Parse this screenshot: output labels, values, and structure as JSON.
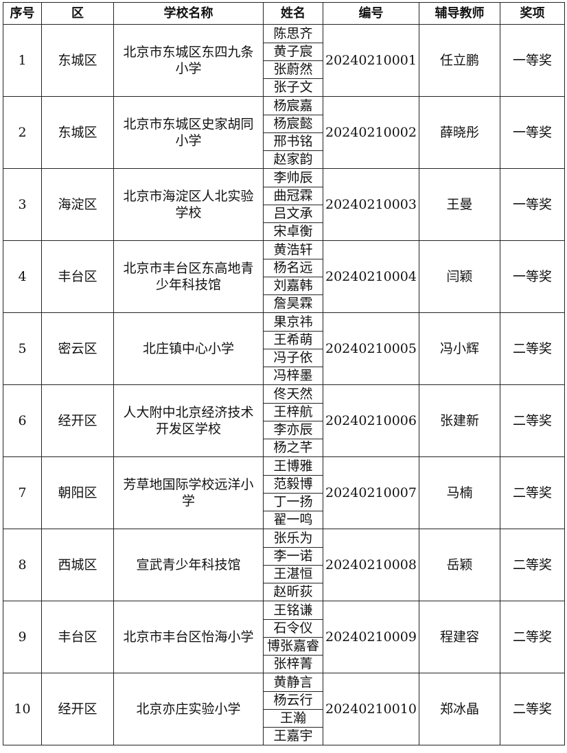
{
  "headers": [
    "序号",
    "区",
    "学校名称",
    "姓名",
    "编号",
    "辅导教师",
    "奖项"
  ],
  "rows": [
    {
      "no": "1",
      "district": "东城区",
      "school": "北京市东城区东四九条小学",
      "names": [
        "陈思齐",
        "黄子宸",
        "张蔚然",
        "张子文"
      ],
      "code": "20240210001",
      "teacher": "任立鹏",
      "award": "一等奖"
    },
    {
      "no": "2",
      "district": "东城区",
      "school": "北京市东城区史家胡同小学",
      "names": [
        "杨宸嘉",
        "杨宸懿",
        "邢书铭",
        "赵家韵"
      ],
      "code": "20240210002",
      "teacher": "薛晓彤",
      "award": "一等奖"
    },
    {
      "no": "3",
      "district": "海淀区",
      "school": "北京市海淀区人北实验学校",
      "names": [
        "李帅辰",
        "曲冠霖",
        "吕文承",
        "宋卓衡"
      ],
      "code": "20240210003",
      "teacher": "王曼",
      "award": "一等奖"
    },
    {
      "no": "4",
      "district": "丰台区",
      "school": "北京市丰台区东高地青少年科技馆",
      "names": [
        "黄浩轩",
        "杨名远",
        "刘嘉韩",
        "詹昊霖"
      ],
      "code": "20240210004",
      "teacher": "闫颖",
      "award": "一等奖"
    },
    {
      "no": "5",
      "district": "密云区",
      "school": "北庄镇中心小学",
      "names": [
        "果京祎",
        "王希萌",
        "冯子依",
        "冯梓墨"
      ],
      "code": "20240210005",
      "teacher": "冯小辉",
      "award": "二等奖"
    },
    {
      "no": "6",
      "district": "经开区",
      "school": "人大附中北京经济技术开发区学校",
      "names": [
        "佟天然",
        "王梓航",
        "李亦辰",
        "杨之芊"
      ],
      "code": "20240210006",
      "teacher": "张建新",
      "award": "二等奖"
    },
    {
      "no": "7",
      "district": "朝阳区",
      "school": "芳草地国际学校远洋小学",
      "names": [
        "王博雅",
        "范毅博",
        "丁一扬",
        "翟一鸣"
      ],
      "code": "20240210007",
      "teacher": "马楠",
      "award": "二等奖"
    },
    {
      "no": "8",
      "district": "西城区",
      "school": "宣武青少年科技馆",
      "names": [
        "张乐为",
        "李一诺",
        "王湛恒",
        "赵昕荻"
      ],
      "code": "20240210008",
      "teacher": "岳颖",
      "award": "二等奖"
    },
    {
      "no": "9",
      "district": "丰台区",
      "school": "北京市丰台区怡海小学",
      "names": [
        "王铭谦",
        "石令仪",
        "博张嘉睿",
        "张梓菁"
      ],
      "code": "20240210009",
      "teacher": "程建容",
      "award": "二等奖"
    },
    {
      "no": "10",
      "district": "经开区",
      "school": "北京亦庄实验小学",
      "names": [
        "黄静言",
        "杨云行",
        "王瀚",
        "王嘉宇"
      ],
      "code": "20240210010",
      "teacher": "郑冰晶",
      "award": "二等奖"
    }
  ]
}
